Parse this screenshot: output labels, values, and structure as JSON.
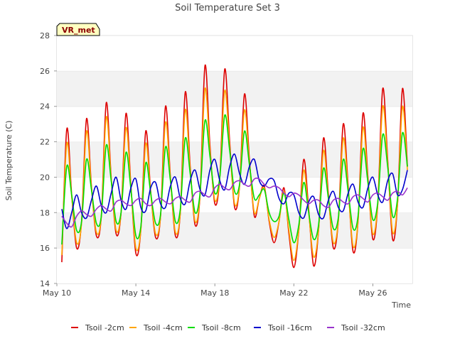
{
  "chart_data": {
    "type": "line",
    "title": "Soil Temperature Set 3",
    "xlabel": "Time",
    "ylabel": "Soil Temperature (C)",
    "badge": "VR_met",
    "x_start_label": "May 10",
    "xlim": [
      "May 10",
      "May 28"
    ],
    "ylim": [
      14,
      28
    ],
    "xticks": [
      "May 10",
      "May 14",
      "May 18",
      "May 22",
      "May 26"
    ],
    "yticks": [
      14,
      16,
      18,
      20,
      22,
      24,
      26,
      28
    ],
    "grid": "horizontal bands",
    "legend_position": "bottom",
    "x": [
      "May 10 06:00",
      "May 10 12:00",
      "May 10 18:00",
      "May 11 00:00",
      "May 11 06:00",
      "May 11 12:00",
      "May 11 18:00",
      "May 12 00:00",
      "May 12 06:00",
      "May 12 12:00",
      "May 12 18:00",
      "May 13 00:00",
      "May 13 06:00",
      "May 13 12:00",
      "May 13 18:00",
      "May 14 00:00",
      "May 14 06:00",
      "May 14 12:00",
      "May 14 18:00",
      "May 15 00:00",
      "May 15 06:00",
      "May 15 12:00",
      "May 15 18:00",
      "May 16 00:00",
      "May 16 06:00",
      "May 16 12:00",
      "May 16 18:00",
      "May 17 00:00",
      "May 17 06:00",
      "May 17 12:00",
      "May 17 18:00",
      "May 18 00:00",
      "May 18 06:00",
      "May 18 12:00",
      "May 18 18:00",
      "May 19 00:00",
      "May 19 06:00",
      "May 19 12:00",
      "May 19 18:00",
      "May 20 00:00",
      "May 20 06:00",
      "May 20 12:00",
      "May 20 18:00",
      "May 21 00:00",
      "May 21 06:00",
      "May 21 12:00",
      "May 21 18:00",
      "May 22 00:00",
      "May 22 06:00",
      "May 22 12:00",
      "May 22 18:00",
      "May 23 00:00",
      "May 23 06:00",
      "May 23 12:00",
      "May 23 18:00",
      "May 24 00:00",
      "May 24 06:00",
      "May 24 12:00",
      "May 24 18:00",
      "May 25 00:00",
      "May 25 06:00",
      "May 25 12:00",
      "May 25 18:00",
      "May 26 00:00",
      "May 26 06:00",
      "May 26 12:00",
      "May 26 18:00",
      "May 27 00:00",
      "May 27 06:00",
      "May 27 12:00",
      "May 27 18:00"
    ],
    "series": [
      {
        "name": "Tsoil -2cm",
        "color": "#dd0000",
        "values": [
          15.2,
          22.7,
          19.0,
          16.0,
          17.5,
          23.3,
          19.5,
          16.7,
          17.8,
          24.2,
          20.0,
          16.8,
          18.0,
          23.6,
          19.5,
          15.7,
          17.0,
          22.6,
          19.2,
          16.6,
          17.8,
          24.0,
          20.0,
          16.7,
          18.0,
          24.8,
          20.6,
          17.3,
          19.0,
          26.3,
          21.8,
          18.5,
          20.0,
          26.1,
          22.0,
          18.3,
          19.5,
          24.7,
          21.0,
          17.8,
          18.8,
          19.5,
          17.5,
          16.3,
          17.5,
          19.4,
          16.8,
          14.9,
          17.0,
          21.0,
          18.2,
          15.0,
          17.0,
          22.2,
          19.0,
          16.0,
          17.5,
          23.0,
          19.5,
          15.8,
          17.5,
          23.6,
          20.0,
          16.5,
          18.5,
          25.0,
          21.0,
          16.5,
          18.5,
          25.0,
          20.6
        ]
      },
      {
        "name": "Tsoil -4cm",
        "color": "#ffa500",
        "values": [
          15.6,
          21.9,
          18.9,
          16.3,
          17.4,
          22.6,
          19.4,
          16.9,
          17.8,
          23.4,
          19.9,
          17.0,
          18.0,
          22.8,
          19.4,
          16.0,
          17.0,
          21.9,
          19.1,
          16.8,
          17.8,
          23.1,
          19.9,
          16.9,
          18.0,
          23.8,
          20.4,
          17.5,
          19.0,
          25.0,
          21.5,
          18.7,
          20.0,
          24.9,
          21.7,
          18.5,
          19.5,
          23.8,
          20.8,
          18.0,
          18.8,
          19.4,
          17.6,
          16.6,
          17.5,
          19.2,
          17.0,
          15.3,
          17.0,
          20.4,
          18.0,
          15.5,
          17.0,
          21.5,
          18.8,
          16.3,
          17.5,
          22.2,
          19.3,
          16.1,
          17.5,
          22.8,
          19.8,
          16.8,
          18.5,
          24.0,
          20.8,
          16.9,
          18.5,
          24.0,
          20.4
        ]
      },
      {
        "name": "Tsoil -8cm",
        "color": "#00dd00",
        "values": [
          16.2,
          20.6,
          19.0,
          17.0,
          17.5,
          21.0,
          19.3,
          17.4,
          17.8,
          21.8,
          19.8,
          17.5,
          18.0,
          21.4,
          19.3,
          16.7,
          17.2,
          20.8,
          19.1,
          17.4,
          17.9,
          21.7,
          19.8,
          17.5,
          18.2,
          22.2,
          20.2,
          18.0,
          19.1,
          23.2,
          21.2,
          19.1,
          20.0,
          23.5,
          21.5,
          19.2,
          19.6,
          22.6,
          20.7,
          18.8,
          19.0,
          19.3,
          18.0,
          17.5,
          17.8,
          19.1,
          17.6,
          16.3,
          17.3,
          19.7,
          18.0,
          16.5,
          17.3,
          20.5,
          18.8,
          17.1,
          17.7,
          21.0,
          19.2,
          17.1,
          17.8,
          21.6,
          19.7,
          17.6,
          18.6,
          22.4,
          20.6,
          17.8,
          18.8,
          22.5,
          20.6
        ]
      },
      {
        "name": "Tsoil -16cm",
        "color": "#0000cc",
        "values": [
          18.2,
          17.1,
          18.0,
          19.0,
          18.0,
          17.7,
          18.7,
          19.5,
          18.4,
          18.0,
          19.1,
          20.0,
          18.7,
          18.2,
          19.4,
          19.9,
          18.3,
          18.1,
          19.4,
          19.7,
          18.5,
          18.3,
          19.5,
          20.0,
          18.8,
          18.5,
          19.8,
          20.4,
          19.3,
          19.0,
          20.4,
          21.0,
          19.8,
          19.3,
          20.6,
          21.3,
          20.2,
          19.6,
          20.6,
          21.0,
          19.8,
          19.5,
          19.9,
          19.8,
          18.8,
          18.5,
          19.1,
          19.0,
          18.0,
          17.7,
          18.6,
          18.9,
          17.9,
          17.7,
          18.7,
          19.2,
          18.3,
          18.1,
          19.1,
          19.6,
          18.6,
          18.3,
          19.4,
          20.0,
          19.0,
          18.6,
          19.8,
          20.2,
          19.0,
          19.3,
          20.4
        ]
      },
      {
        "name": "Tsoil -32cm",
        "color": "#9933cc",
        "values": [
          17.8,
          17.4,
          17.2,
          17.8,
          18.1,
          17.9,
          17.8,
          18.2,
          18.4,
          18.2,
          18.1,
          18.6,
          18.7,
          18.5,
          18.4,
          18.7,
          18.8,
          18.5,
          18.4,
          18.7,
          18.8,
          18.6,
          18.5,
          18.8,
          18.9,
          18.7,
          18.6,
          19.1,
          19.2,
          19.0,
          18.9,
          19.4,
          19.6,
          19.4,
          19.3,
          19.7,
          19.8,
          19.6,
          19.5,
          19.9,
          19.9,
          19.6,
          19.4,
          19.5,
          19.4,
          19.1,
          18.9,
          19.1,
          19.0,
          18.7,
          18.5,
          18.7,
          18.7,
          18.4,
          18.3,
          18.7,
          18.8,
          18.6,
          18.5,
          18.9,
          19.0,
          18.8,
          18.6,
          19.0,
          19.1,
          18.9,
          18.7,
          19.1,
          19.2,
          19.0,
          19.4
        ]
      }
    ]
  }
}
